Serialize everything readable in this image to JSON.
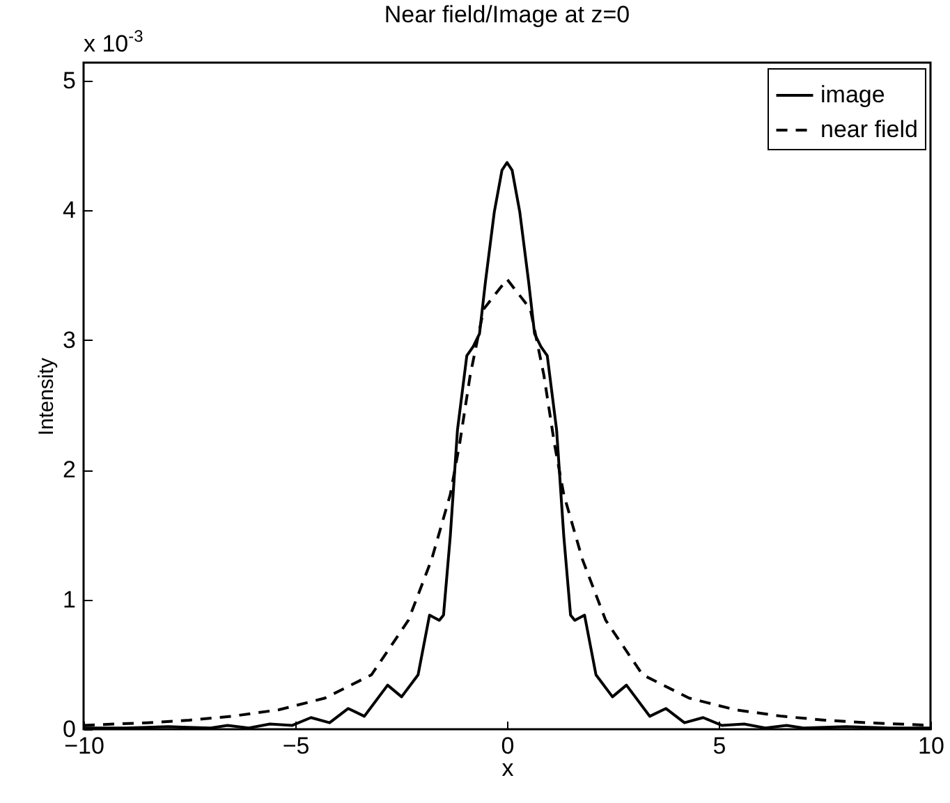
{
  "chart_data": {
    "type": "line",
    "title": "Near field/Image at z=0",
    "xlabel": "x",
    "ylabel": "Intensity",
    "annotations": [
      "x 10$^{-3}$"
    ],
    "xlim": [
      -10,
      10
    ],
    "xticks": [
      {
        "value": -10,
        "label": "−10"
      },
      {
        "value": -5,
        "label": "−5"
      },
      0,
      5,
      10
    ],
    "ylim": [
      0,
      5.14
    ],
    "yticks": [
      0,
      1,
      2,
      3,
      4,
      5
    ],
    "legend": "top right",
    "grid": false,
    "series": [
      {
        "name": "image",
        "color": "#000000",
        "line_style": "solid",
        "x": [
          -10,
          -9,
          -8,
          -7,
          -6.6,
          -6.1,
          -5.6,
          -5.07,
          -4.63,
          -4.19,
          -3.75,
          -3.37,
          -2.82,
          -2.49,
          -2.1,
          -1.83,
          -1.6,
          -1.5,
          -1.34,
          -1.17,
          -0.95,
          -0.8,
          -0.65,
          -0.51,
          -0.3,
          -0.12,
          0,
          0.12,
          0.3,
          0.51,
          0.65,
          0.8,
          0.95,
          1.17,
          1.34,
          1.5,
          1.6,
          1.83,
          2.1,
          2.49,
          2.82,
          3.37,
          3.75,
          4.19,
          4.63,
          5.07,
          5.6,
          6.1,
          6.6,
          7,
          8,
          9,
          10
        ],
        "values": [
          0.01,
          0.01,
          0.02,
          0.01,
          0.03,
          0.01,
          0.04,
          0.03,
          0.09,
          0.05,
          0.16,
          0.1,
          0.34,
          0.25,
          0.42,
          0.88,
          0.84,
          0.88,
          1.49,
          2.31,
          2.88,
          2.95,
          3.05,
          3.45,
          3.99,
          4.31,
          4.37,
          4.31,
          3.99,
          3.45,
          3.05,
          2.95,
          2.88,
          2.31,
          1.49,
          0.88,
          0.84,
          0.88,
          0.42,
          0.25,
          0.34,
          0.1,
          0.16,
          0.05,
          0.09,
          0.03,
          0.04,
          0.01,
          0.03,
          0.01,
          0.02,
          0.01,
          0.01
        ]
      },
      {
        "name": "near field",
        "color": "#000000",
        "line_style": "dashed",
        "x": [
          -10,
          -8.5,
          -7.5,
          -6.5,
          -5.39,
          -4.3,
          -3.2,
          -2.33,
          -1.78,
          -1.34,
          -1.12,
          -0.87,
          -0.55,
          0,
          0.55,
          0.87,
          1.12,
          1.34,
          1.78,
          2.33,
          3.2,
          4.3,
          5.39,
          6.5,
          7.5,
          8.5,
          10
        ],
        "values": [
          0.03,
          0.05,
          0.07,
          0.1,
          0.15,
          0.24,
          0.42,
          0.84,
          1.31,
          1.81,
          2.2,
          2.73,
          3.24,
          3.47,
          3.24,
          2.73,
          2.2,
          1.81,
          1.31,
          0.84,
          0.42,
          0.24,
          0.15,
          0.1,
          0.07,
          0.05,
          0.03
        ]
      }
    ]
  }
}
